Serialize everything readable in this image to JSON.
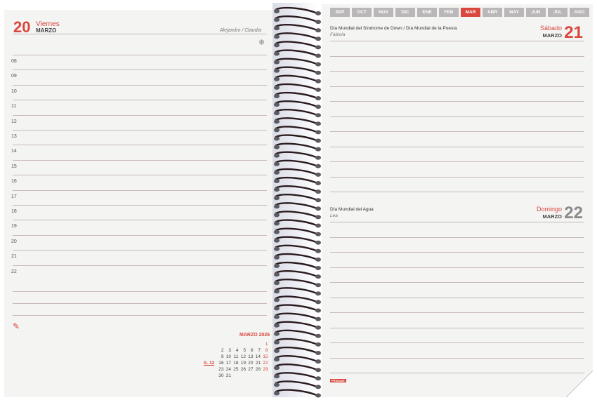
{
  "left": {
    "day_number": "20",
    "day_name": "Viernes",
    "month": "MARZO",
    "saints": "Alejandro / Claudia",
    "hours": [
      "08",
      "09",
      "10",
      "11",
      "12",
      "13",
      "14",
      "15",
      "16",
      "17",
      "18",
      "19",
      "20",
      "21",
      "22"
    ],
    "season_icon": "snowflake-icon",
    "note_icon": "pencil-icon"
  },
  "mini_calendar": {
    "title": "MARZO 2026",
    "week_label": "S. 12",
    "rows": [
      [
        "",
        "",
        "",
        "",
        "",
        "",
        "1"
      ],
      [
        "2",
        "3",
        "4",
        "5",
        "6",
        "7",
        "8"
      ],
      [
        "9",
        "10",
        "11",
        "12",
        "13",
        "14",
        "15"
      ],
      [
        "16",
        "17",
        "18",
        "19",
        "20",
        "21",
        "22"
      ],
      [
        "23",
        "24",
        "25",
        "26",
        "27",
        "28",
        "29"
      ],
      [
        "30",
        "31",
        "",
        "",
        "",
        "",
        ""
      ]
    ]
  },
  "tabs": [
    "SEP",
    "OCT",
    "NOV",
    "DIC",
    "ENE",
    "FEB",
    "MAR",
    "ABR",
    "MAY",
    "JUN",
    "JUL",
    "AGO"
  ],
  "active_tab": "MAR",
  "right": {
    "day1": {
      "events": "Día Mundial del Síndrome de Down / Día Mundial de la Poesía",
      "saint": "Fabiola",
      "day_name": "Sábado",
      "month": "MARZO",
      "day_number": "21"
    },
    "day2": {
      "events": "Día Mundial del Agua",
      "saint": "Lea",
      "day_name": "Domingo",
      "month": "MARZO",
      "day_number": "22"
    },
    "brand": "Finocam"
  },
  "colors": {
    "accent": "#d9473f",
    "tab_inactive": "#b9b7b7",
    "page": "#f4f4f3",
    "rule": "#c9b9bb",
    "sunday_number": "#8c8a8a"
  }
}
